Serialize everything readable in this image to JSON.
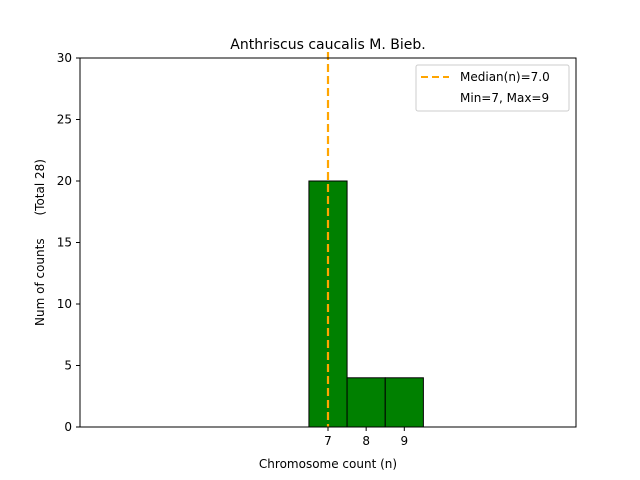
{
  "chart_data": {
    "type": "bar",
    "title": "Anthriscus caucalis M. Bieb.",
    "xlabel": "Chromosome count (n)",
    "ylabel": "Num of counts      (Total 28)",
    "categories": [
      7,
      8,
      9
    ],
    "values": [
      20,
      4,
      4
    ],
    "bar_color": "#008000",
    "bar_edge_color": "#000000",
    "xlim": [
      0.5,
      13.5
    ],
    "ylim": [
      0,
      30
    ],
    "xticks": [
      7,
      8,
      9
    ],
    "yticks": [
      0,
      5,
      10,
      15,
      20,
      25,
      30
    ],
    "baseline_x": [
      1,
      12.5
    ],
    "median": {
      "value": 7.0,
      "color": "#FFA500",
      "label": "Median(n)=7.0"
    },
    "legend": {
      "location": "top-right",
      "entries": [
        "Median(n)=7.0",
        "Min=7, Max=9"
      ]
    },
    "grid": false
  }
}
